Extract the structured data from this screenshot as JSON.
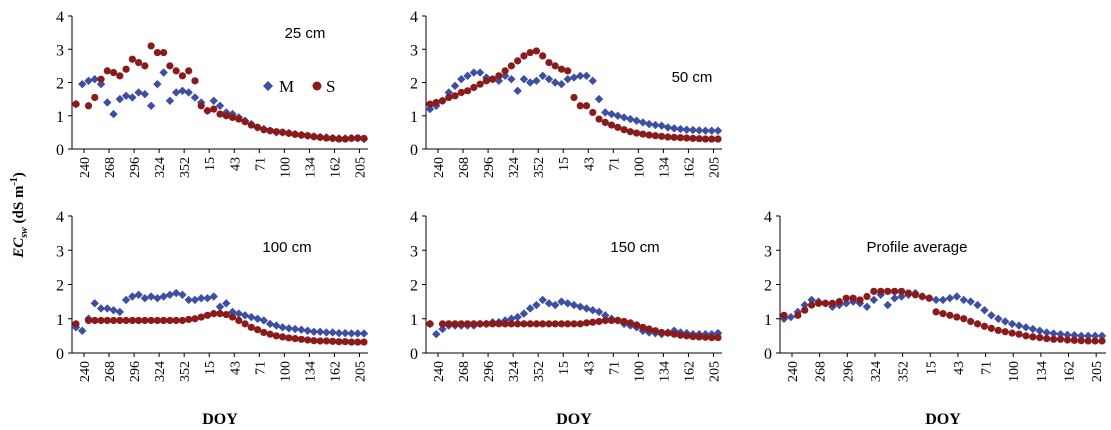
{
  "figure": {
    "ylabel_main": "EC",
    "ylabel_sub": "sw",
    "ylabel_units_open": " (dS m",
    "ylabel_units_exp": "-1",
    "ylabel_units_close": ")",
    "series_colors": {
      "M": "#3c4fa3",
      "S": "#8b1a1a"
    }
  },
  "chart_data": [
    {
      "type": "scatter",
      "title": "25 cm",
      "xlabel": "",
      "ylabel": "",
      "x_ticks": [
        "240",
        "268",
        "296",
        "324",
        "352",
        "15",
        "43",
        "71",
        "100",
        "134",
        "162",
        "205"
      ],
      "ylim": [
        0,
        4
      ],
      "y_ticks": [
        "0",
        "1",
        "2",
        "3",
        "4"
      ],
      "legend": {
        "placement": "center-right",
        "entries": [
          "M",
          "S"
        ]
      },
      "series": [
        {
          "name": "M",
          "marker": "diamond",
          "values": [
            1.35,
            1.95,
            2.05,
            2.1,
            1.95,
            1.4,
            1.05,
            1.5,
            1.6,
            1.55,
            1.7,
            1.65,
            1.3,
            1.95,
            2.3,
            1.45,
            1.7,
            1.75,
            1.7,
            1.55,
            1.4,
            1.15,
            1.45,
            1.3,
            1.1,
            1.05,
            0.95,
            0.85,
            0.75,
            0.65,
            0.6,
            0.55,
            0.5,
            0.5,
            0.48,
            0.45,
            0.42,
            0.4,
            0.38,
            0.36,
            0.35,
            0.33,
            0.32,
            0.32,
            0.33,
            0.32,
            0.3
          ]
        },
        {
          "name": "S",
          "marker": "circle",
          "values": [
            1.35,
            null,
            1.3,
            1.55,
            2.1,
            2.35,
            2.3,
            2.2,
            2.4,
            2.7,
            2.6,
            2.5,
            3.1,
            2.9,
            2.9,
            2.5,
            2.35,
            2.2,
            2.35,
            2.05,
            1.3,
            1.15,
            1.2,
            1.05,
            1.0,
            0.95,
            0.9,
            0.82,
            0.72,
            0.65,
            0.58,
            0.55,
            0.52,
            0.5,
            0.47,
            0.44,
            0.42,
            0.4,
            0.37,
            0.35,
            0.33,
            0.32,
            0.3,
            0.3,
            0.32,
            0.33,
            0.32
          ]
        }
      ]
    },
    {
      "type": "scatter",
      "title": "50 cm",
      "xlabel": "",
      "ylabel": "",
      "x_ticks": [
        "240",
        "268",
        "296",
        "324",
        "352",
        "15",
        "43",
        "71",
        "100",
        "134",
        "162",
        "205"
      ],
      "ylim": [
        0,
        4
      ],
      "y_ticks": [
        "0",
        "1",
        "2",
        "3",
        "4"
      ],
      "series": [
        {
          "name": "M",
          "marker": "diamond",
          "values": [
            1.2,
            1.3,
            1.45,
            1.7,
            1.9,
            2.1,
            2.2,
            2.3,
            2.3,
            2.15,
            2.1,
            2.05,
            2.2,
            2.1,
            1.75,
            2.1,
            2.0,
            2.05,
            2.2,
            2.1,
            2.0,
            1.95,
            2.1,
            2.15,
            2.2,
            2.2,
            2.05,
            1.5,
            1.1,
            1.05,
            1.0,
            0.95,
            0.9,
            0.85,
            0.8,
            0.75,
            0.72,
            0.7,
            0.65,
            0.62,
            0.6,
            0.58,
            0.57,
            0.56,
            0.55,
            0.55,
            0.55
          ]
        },
        {
          "name": "S",
          "marker": "circle",
          "values": [
            1.35,
            1.4,
            1.45,
            1.55,
            1.6,
            1.7,
            1.75,
            1.85,
            1.95,
            2.05,
            2.1,
            2.2,
            2.35,
            2.5,
            2.65,
            2.8,
            2.9,
            2.95,
            2.8,
            2.6,
            2.5,
            2.4,
            2.35,
            1.55,
            1.3,
            1.3,
            1.1,
            0.9,
            0.8,
            0.72,
            0.65,
            0.58,
            0.52,
            0.48,
            0.45,
            0.42,
            0.4,
            0.38,
            0.36,
            0.35,
            0.34,
            0.33,
            0.32,
            0.31,
            0.3,
            0.3,
            0.3
          ]
        }
      ]
    },
    {
      "type": "scatter",
      "title": "100 cm",
      "xlabel": "DOY",
      "ylabel": "",
      "x_ticks": [
        "240",
        "268",
        "296",
        "324",
        "352",
        "15",
        "43",
        "71",
        "100",
        "134",
        "162",
        "205"
      ],
      "ylim": [
        0,
        4
      ],
      "y_ticks": [
        "0",
        "1",
        "2",
        "3",
        "4"
      ],
      "series": [
        {
          "name": "M",
          "marker": "diamond",
          "values": [
            0.75,
            0.65,
            1.0,
            1.45,
            1.3,
            1.3,
            1.25,
            1.2,
            1.55,
            1.65,
            1.7,
            1.6,
            1.65,
            1.6,
            1.65,
            1.7,
            1.75,
            1.7,
            1.55,
            1.55,
            1.6,
            1.6,
            1.65,
            1.35,
            1.45,
            1.2,
            1.15,
            1.1,
            1.05,
            1.0,
            0.95,
            0.85,
            0.8,
            0.75,
            0.72,
            0.7,
            0.68,
            0.65,
            0.62,
            0.62,
            0.6,
            0.6,
            0.58,
            0.58,
            0.57,
            0.57,
            0.57
          ]
        },
        {
          "name": "S",
          "marker": "circle",
          "values": [
            0.85,
            null,
            0.95,
            0.95,
            0.95,
            0.95,
            0.95,
            0.95,
            0.95,
            0.95,
            0.95,
            0.95,
            0.95,
            0.95,
            0.95,
            0.95,
            0.95,
            0.95,
            0.98,
            1.0,
            1.05,
            1.1,
            1.15,
            1.15,
            1.12,
            1.05,
            0.95,
            0.85,
            0.75,
            0.68,
            0.6,
            0.55,
            0.5,
            0.47,
            0.44,
            0.42,
            0.4,
            0.38,
            0.36,
            0.35,
            0.35,
            0.34,
            0.33,
            0.33,
            0.32,
            0.32,
            0.32
          ]
        }
      ]
    },
    {
      "type": "scatter",
      "title": "150 cm",
      "xlabel": "DOY",
      "ylabel": "",
      "x_ticks": [
        "240",
        "268",
        "296",
        "324",
        "352",
        "15",
        "43",
        "71",
        "100",
        "134",
        "162",
        "205"
      ],
      "ylim": [
        0,
        4
      ],
      "y_ticks": [
        "0",
        "1",
        "2",
        "3",
        "4"
      ],
      "series": [
        {
          "name": "M",
          "marker": "diamond",
          "values": [
            0.85,
            0.55,
            0.7,
            0.8,
            0.8,
            0.8,
            0.8,
            0.8,
            0.85,
            0.85,
            0.9,
            0.9,
            0.95,
            1.0,
            1.05,
            1.15,
            1.3,
            1.4,
            1.55,
            1.45,
            1.4,
            1.5,
            1.45,
            1.4,
            1.35,
            1.3,
            1.25,
            1.2,
            1.1,
            1.0,
            0.95,
            0.85,
            0.8,
            0.75,
            0.65,
            0.6,
            0.58,
            0.55,
            0.6,
            0.65,
            0.6,
            0.58,
            0.55,
            0.55,
            0.55,
            0.55,
            0.58
          ]
        },
        {
          "name": "S",
          "marker": "circle",
          "values": [
            0.85,
            null,
            0.85,
            0.85,
            0.85,
            0.85,
            0.85,
            0.85,
            0.85,
            0.85,
            0.85,
            0.85,
            0.85,
            0.85,
            0.85,
            0.85,
            0.85,
            0.85,
            0.85,
            0.85,
            0.85,
            0.85,
            0.85,
            0.85,
            0.85,
            0.88,
            0.9,
            0.92,
            0.95,
            0.95,
            0.95,
            0.92,
            0.88,
            0.82,
            0.75,
            0.7,
            0.65,
            0.6,
            0.58,
            0.55,
            0.52,
            0.5,
            0.48,
            0.47,
            0.46,
            0.45,
            0.45
          ]
        }
      ]
    },
    {
      "type": "scatter",
      "title": "Profile average",
      "xlabel": "DOY",
      "ylabel": "",
      "x_ticks": [
        "240",
        "268",
        "296",
        "324",
        "352",
        "15",
        "43",
        "71",
        "100",
        "134",
        "162",
        "205"
      ],
      "ylim": [
        0,
        4
      ],
      "y_ticks": [
        "0",
        "1",
        "2",
        "3",
        "4"
      ],
      "series": [
        {
          "name": "M",
          "marker": "diamond",
          "values": [
            1.0,
            1.05,
            1.2,
            1.4,
            1.55,
            1.5,
            1.45,
            1.35,
            1.4,
            1.45,
            1.5,
            1.45,
            1.35,
            1.55,
            1.7,
            1.4,
            1.6,
            1.65,
            1.7,
            1.75,
            1.65,
            1.6,
            1.55,
            1.55,
            1.6,
            1.65,
            1.55,
            1.5,
            1.4,
            1.25,
            1.1,
            1.0,
            0.92,
            0.85,
            0.8,
            0.75,
            0.7,
            0.65,
            0.6,
            0.57,
            0.55,
            0.53,
            0.52,
            0.5,
            0.5,
            0.5,
            0.5
          ]
        },
        {
          "name": "S",
          "marker": "circle",
          "values": [
            1.1,
            null,
            1.1,
            1.25,
            1.4,
            1.45,
            1.45,
            1.45,
            1.5,
            1.6,
            1.6,
            1.55,
            1.65,
            1.8,
            1.8,
            1.8,
            1.8,
            1.8,
            1.75,
            1.7,
            1.65,
            1.6,
            1.2,
            1.15,
            1.1,
            1.05,
            1.0,
            0.92,
            0.85,
            0.78,
            0.72,
            0.66,
            0.62,
            0.58,
            0.55,
            0.5,
            0.47,
            0.45,
            0.42,
            0.4,
            0.4,
            0.38,
            0.37,
            0.36,
            0.35,
            0.35,
            0.35
          ]
        }
      ]
    }
  ]
}
